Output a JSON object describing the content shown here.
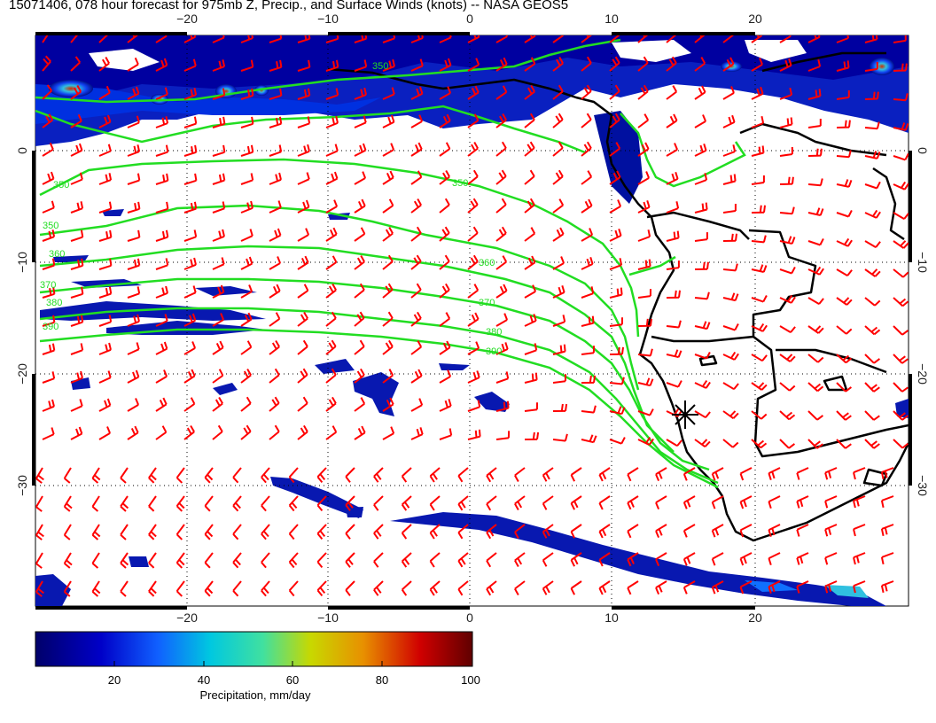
{
  "title": "15071406, 078 hour forecast for 975mb Z, Precip., and Surface Winds (knots) -- NASA GEOS5",
  "map": {
    "lon_range": [
      -31,
      31
    ],
    "lat_range": [
      -40,
      11
    ],
    "lon_ticks": [
      -20,
      -10,
      0,
      10,
      20
    ],
    "lat_ticks": [
      0,
      -10,
      -20,
      -30
    ],
    "lon_tick_labels": [
      "−20",
      "−10",
      "0",
      "10",
      "20"
    ],
    "lat_tick_labels": [
      "0",
      "−10",
      "−20",
      "−30"
    ],
    "grid": "dotted",
    "coastline_color": "#000000",
    "wind_barb_color": "#ff0000",
    "contour_color": "#22dd22",
    "marker": {
      "symbol": "asterisk",
      "lon": 15.2,
      "lat": -22.9
    },
    "contour_labels": [
      "350",
      "350",
      "350",
      "360",
      "370",
      "380",
      "390",
      "390",
      "380",
      "370",
      "360",
      "350"
    ]
  },
  "colorbar": {
    "label": "Precipitation, mm/day",
    "ticks": [
      "20",
      "40",
      "60",
      "80",
      "100"
    ],
    "colors": [
      "#00006a",
      "#0000c8",
      "#1060ff",
      "#00c8e0",
      "#40e0a0",
      "#c8d800",
      "#e89000",
      "#d00000",
      "#600000"
    ]
  }
}
